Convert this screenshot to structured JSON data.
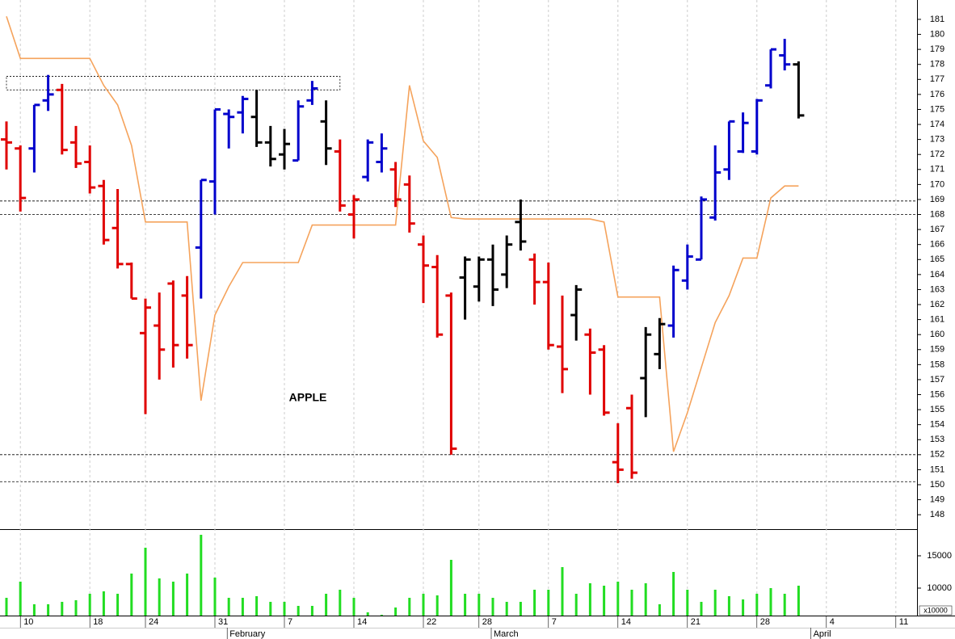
{
  "chart_data": [
    {
      "type": "ohlc",
      "title": "APPLE",
      "open": [
        173.0,
        172.4,
        172.4,
        175.6,
        176.3,
        172.8,
        171.5,
        169.9,
        167.1,
        164.7,
        160.1,
        160.6,
        163.4,
        162.6,
        165.8,
        170.2,
        174.7,
        174.8,
        174.5,
        172.8,
        172.0,
        171.6,
        175.6,
        174.2,
        172.2,
        168.0,
        170.5,
        171.5,
        171.0,
        170.0,
        166.0,
        164.5,
        162.6,
        163.8,
        163.2,
        165.0,
        164.0,
        167.5,
        165.0,
        163.5,
        159.2,
        161.3,
        160.0,
        159.0,
        151.5,
        155.1,
        157.1,
        158.7,
        160.6,
        163.6,
        165.0,
        167.8,
        171.0,
        172.2,
        172.2,
        176.6,
        178.6,
        178.0
      ],
      "high": [
        174.2,
        172.6,
        175.3,
        177.3,
        176.7,
        173.9,
        172.6,
        170.3,
        169.7,
        164.8,
        162.4,
        162.8,
        163.6,
        163.9,
        170.3,
        175.0,
        175.0,
        175.9,
        176.3,
        173.9,
        173.7,
        175.6,
        176.9,
        175.6,
        173.0,
        169.3,
        173.0,
        173.4,
        171.5,
        170.6,
        166.6,
        165.3,
        162.8,
        165.2,
        165.2,
        166.0,
        166.6,
        169.0,
        165.4,
        164.8,
        162.6,
        163.3,
        160.4,
        159.3,
        154.1,
        156.0,
        160.5,
        161.1,
        164.6,
        166.0,
        169.2,
        172.6,
        174.2,
        174.8,
        175.7,
        179.0,
        179.7,
        178.2
      ],
      "low": [
        171.0,
        168.2,
        170.8,
        174.9,
        172.0,
        171.1,
        169.4,
        166.0,
        164.4,
        162.4,
        154.7,
        157.0,
        157.8,
        158.4,
        162.4,
        168.0,
        172.4,
        173.4,
        172.5,
        171.2,
        171.0,
        171.6,
        175.3,
        171.3,
        168.2,
        166.4,
        170.2,
        170.8,
        168.5,
        166.8,
        162.1,
        159.8,
        152.0,
        161.0,
        162.2,
        161.9,
        163.1,
        165.6,
        162.0,
        159.0,
        156.1,
        159.6,
        156.0,
        154.6,
        150.1,
        150.4,
        154.5,
        157.7,
        159.8,
        163.0,
        165.0,
        167.6,
        170.3,
        172.1,
        172.0,
        176.4,
        177.6,
        174.4
      ],
      "close": [
        172.8,
        169.1,
        175.3,
        176.0,
        172.3,
        171.4,
        169.8,
        166.3,
        164.7,
        162.4,
        161.8,
        159.0,
        159.3,
        159.3,
        170.3,
        175.0,
        174.5,
        175.7,
        172.8,
        171.7,
        172.7,
        175.2,
        176.4,
        172.4,
        168.6,
        169.0,
        172.8,
        172.4,
        169.0,
        167.4,
        164.6,
        160.0,
        152.4,
        165.0,
        165.0,
        163.0,
        166.0,
        166.2,
        163.5,
        159.3,
        157.7,
        163.0,
        158.8,
        154.8,
        151.0,
        150.8,
        160.0,
        160.7,
        164.3,
        165.2,
        169.0,
        170.8,
        174.2,
        174.1,
        175.6,
        179.0,
        178.0,
        174.6
      ],
      "colors": [
        "#e00000",
        "#e00000",
        "#0000cc",
        "#0000cc",
        "#e00000",
        "#e00000",
        "#e00000",
        "#e00000",
        "#e00000",
        "#e00000",
        "#e00000",
        "#e00000",
        "#e00000",
        "#e00000",
        "#0000cc",
        "#0000cc",
        "#0000cc",
        "#0000cc",
        "#000000",
        "#000000",
        "#000000",
        "#0000cc",
        "#0000cc",
        "#000000",
        "#e00000",
        "#e00000",
        "#0000cc",
        "#0000cc",
        "#e00000",
        "#e00000",
        "#e00000",
        "#e00000",
        "#e00000",
        "#000000",
        "#000000",
        "#000000",
        "#000000",
        "#000000",
        "#e00000",
        "#e00000",
        "#e00000",
        "#000000",
        "#e00000",
        "#e00000",
        "#e00000",
        "#e00000",
        "#000000",
        "#000000",
        "#0000cc",
        "#0000cc",
        "#0000cc",
        "#0000cc",
        "#0000cc",
        "#0000cc",
        "#0000cc",
        "#0000cc",
        "#0000cc",
        "#000000"
      ],
      "line": {
        "color": "#f5a35c",
        "values": [
          181.2,
          178.4,
          178.4,
          178.4,
          178.4,
          178.4,
          178.4,
          176.6,
          175.3,
          172.6,
          167.5,
          167.5,
          167.5,
          167.5,
          155.6,
          161.3,
          163.2,
          164.8,
          164.8,
          164.8,
          164.8,
          164.8,
          167.3,
          167.3,
          167.3,
          167.3,
          167.3,
          167.3,
          167.3,
          176.6,
          172.9,
          171.8,
          167.8,
          167.7,
          167.7,
          167.7,
          167.7,
          167.7,
          167.7,
          167.7,
          167.7,
          167.7,
          167.7,
          167.5,
          162.5,
          162.5,
          162.5,
          162.5,
          152.2,
          154.8,
          157.8,
          160.8,
          162.6,
          165.1,
          165.1,
          169.1,
          169.9,
          169.9
        ]
      },
      "levels": [
        168.9,
        168.0,
        152.0,
        150.2
      ],
      "box": {
        "x": [
          0,
          24
        ],
        "y": [
          176.3,
          177.2
        ]
      },
      "ylim": [
        147.04,
        182.29
      ],
      "yticks": [
        148,
        149,
        150,
        151,
        152,
        153,
        154,
        155,
        156,
        157,
        158,
        159,
        160,
        161,
        162,
        163,
        164,
        165,
        166,
        167,
        168,
        169,
        170,
        171,
        172,
        173,
        174,
        175,
        176,
        177,
        178,
        179,
        180,
        181
      ]
    },
    {
      "type": "bar",
      "color": "#22dd22",
      "categories": [
        null,
        "10",
        null,
        null,
        null,
        null,
        "18",
        null,
        null,
        null,
        "24",
        null,
        null,
        null,
        null,
        "31",
        null,
        null,
        null,
        null,
        "7",
        null,
        null,
        null,
        null,
        "14",
        null,
        null,
        null,
        null,
        "22",
        null,
        null,
        null,
        "28",
        null,
        null,
        null,
        null,
        "7",
        null,
        null,
        null,
        null,
        "14",
        null,
        null,
        null,
        null,
        "21",
        null,
        null,
        null,
        null,
        "28",
        null,
        null,
        null,
        null,
        "4",
        null,
        null,
        null,
        null,
        "11",
        null
      ],
      "months": [
        {
          "label": "February",
          "index": 16
        },
        {
          "label": "March",
          "index": 35
        },
        {
          "label": "April",
          "index": 58
        }
      ],
      "values": [
        8500,
        11000,
        7500,
        7500,
        7875,
        8125,
        9125,
        9500,
        9125,
        12250,
        16250,
        11500,
        11000,
        12250,
        18250,
        11625,
        8500,
        8500,
        8750,
        7875,
        7875,
        7250,
        7250,
        9125,
        9750,
        8500,
        6250,
        5875,
        7000,
        8500,
        9125,
        8875,
        14375,
        9125,
        9125,
        8500,
        7875,
        7875,
        9750,
        9750,
        13250,
        9125,
        10750,
        10375,
        11000,
        9750,
        10750,
        7500,
        12500,
        9750,
        7875,
        9750,
        8750,
        8250,
        9125,
        10000,
        9125,
        10375,
        null,
        null,
        null,
        null,
        null,
        null,
        null,
        null
      ],
      "ylim": [
        5750,
        19125
      ],
      "yticks": [
        10000,
        15000
      ],
      "scale_label": "x10000"
    }
  ]
}
